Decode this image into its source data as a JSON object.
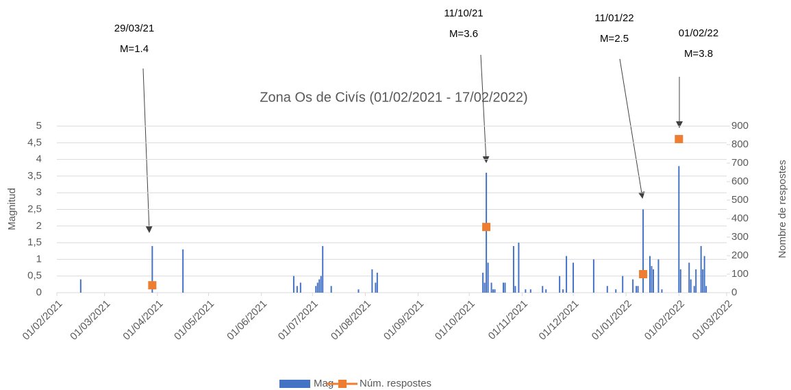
{
  "chart_data": {
    "type": "bar",
    "title": "Zona Os de Civís (01/02/2021 - 17/02/2022)",
    "y_label": "Magnitud",
    "y2_label": "Nombre de respostes",
    "xlim": [
      "01/02/2021",
      "01/03/2022"
    ],
    "xticks": [
      "01/02/2021",
      "01/03/2021",
      "01/04/2021",
      "01/05/2021",
      "01/06/2021",
      "01/07/2021",
      "01/08/2021",
      "01/09/2021",
      "01/10/2021",
      "01/11/2021",
      "01/12/2021",
      "01/01/2022",
      "01/02/2022",
      "01/03/2022"
    ],
    "ylim": [
      0,
      5
    ],
    "yticks": [
      0,
      {
        "value": 0.5,
        "label": "0,5"
      },
      1,
      {
        "value": 1.5,
        "label": "1,5"
      },
      2,
      {
        "value": 2.5,
        "label": "2,5"
      },
      3,
      {
        "value": 3.5,
        "label": "3,5"
      },
      4,
      {
        "value": 4.5,
        "label": "4,5"
      },
      5
    ],
    "y2lim": [
      0,
      900
    ],
    "y2ticks": [
      0,
      100,
      200,
      300,
      400,
      500,
      600,
      700,
      800,
      900
    ],
    "grid": true,
    "legend": "bottom",
    "series": [
      {
        "name": "Mag",
        "type": "bar",
        "axis": "y",
        "color": "#4472c4",
        "x": [
          "15/02/2021",
          "29/03/2021",
          "16/04/2021",
          "20/06/2021",
          "22/06/2021",
          "24/06/2021",
          "03/07/2021",
          "04/07/2021",
          "05/07/2021",
          "06/07/2021",
          "07/07/2021",
          "12/07/2021",
          "28/07/2021",
          "05/08/2021",
          "07/08/2021",
          "08/08/2021",
          "09/10/2021",
          "10/10/2021",
          "11/10/2021",
          "12/10/2021",
          "14/10/2021",
          "15/10/2021",
          "16/10/2021",
          "21/10/2021",
          "22/10/2021",
          "27/10/2021",
          "28/10/2021",
          "30/10/2021",
          "03/11/2021",
          "06/11/2021",
          "13/11/2021",
          "15/11/2021",
          "23/11/2021",
          "25/11/2021",
          "27/11/2021",
          "01/12/2021",
          "13/12/2021",
          "21/12/2021",
          "26/12/2021",
          "30/12/2021",
          "05/01/2022",
          "07/01/2022",
          "08/01/2022",
          "11/01/2022",
          "15/01/2022",
          "16/01/2022",
          "17/01/2022",
          "20/01/2022",
          "22/01/2022",
          "01/02/2022",
          "02/02/2022",
          "07/02/2022",
          "08/02/2022",
          "10/02/2022",
          "11/02/2022",
          "14/02/2022",
          "15/02/2022",
          "16/02/2022",
          "17/02/2022"
        ],
        "values": [
          0.4,
          1.4,
          1.3,
          0.5,
          0.2,
          0.3,
          0.2,
          0.3,
          0.4,
          0.5,
          1.4,
          0.2,
          0.1,
          0.7,
          0.3,
          0.6,
          0.6,
          0.3,
          3.6,
          0.9,
          0.3,
          0.1,
          0.1,
          0.3,
          0.3,
          1.4,
          0.2,
          1.5,
          0.1,
          0.1,
          0.2,
          0.1,
          0.5,
          0.1,
          1.1,
          0.9,
          1.0,
          0.2,
          0.1,
          0.5,
          0.4,
          0.2,
          0.2,
          2.5,
          1.1,
          0.8,
          0.7,
          1.0,
          0.1,
          3.8,
          0.7,
          0.9,
          0.4,
          0.2,
          0.7,
          1.4,
          0.7,
          1.1,
          0.2
        ]
      },
      {
        "name": "Núm. respostes",
        "type": "scatter",
        "axis": "y2",
        "color": "#ed7d31",
        "x": [
          "29/03/2021",
          "11/10/2021",
          "11/01/2022",
          "01/02/2022"
        ],
        "values": [
          40,
          355,
          100,
          830
        ]
      }
    ],
    "annotations": [
      {
        "lines": [
          "29/03/21",
          "M=1.4"
        ]
      },
      {
        "lines": [
          "11/10/21",
          "M=3.6"
        ]
      },
      {
        "lines": [
          "11/01/22",
          "M=2.5"
        ]
      },
      {
        "lines": [
          "01/02/22",
          "M=3.8"
        ]
      }
    ]
  }
}
